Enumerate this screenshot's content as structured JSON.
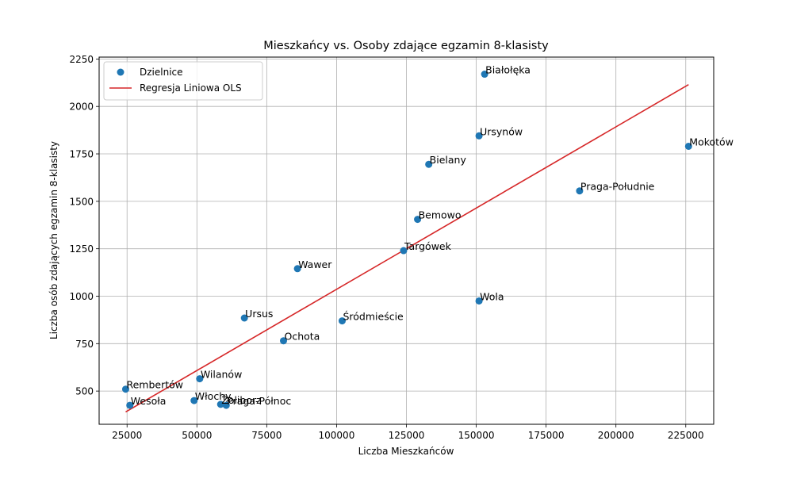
{
  "chart_data": {
    "type": "scatter",
    "title": "Mieszkańcy vs. Osoby zdające egzamin 8-klasisty",
    "xlabel": "Liczba Mieszkańców",
    "ylabel": "Liczba osób zdających egzamin 8-klasisty",
    "xlim": [
      15000,
      235000
    ],
    "ylim": [
      325,
      2260
    ],
    "xticks": [
      25000,
      50000,
      75000,
      100000,
      125000,
      150000,
      175000,
      200000,
      225000
    ],
    "xtick_labels": [
      "25000",
      "50000",
      "75000",
      "100000",
      "125000",
      "150000",
      "175000",
      "200000",
      "225000"
    ],
    "yticks": [
      500,
      750,
      1000,
      1250,
      1500,
      1750,
      2000,
      2250
    ],
    "ytick_labels": [
      "500",
      "750",
      "1000",
      "1250",
      "1500",
      "1750",
      "2000",
      "2250"
    ],
    "grid": true,
    "legend_position": "top-left",
    "series": [
      {
        "name": "Dzielnice",
        "kind": "scatter",
        "color": "#1f77b4",
        "points": [
          {
            "label": "Białołęka",
            "x": 153000,
            "y": 2170
          },
          {
            "label": "Ursynów",
            "x": 151000,
            "y": 1845
          },
          {
            "label": "Mokotów",
            "x": 226000,
            "y": 1790
          },
          {
            "label": "Bielany",
            "x": 133000,
            "y": 1695
          },
          {
            "label": "Praga-Południe",
            "x": 187000,
            "y": 1555
          },
          {
            "label": "Bemowo",
            "x": 129000,
            "y": 1405
          },
          {
            "label": "Targówek",
            "x": 124000,
            "y": 1240
          },
          {
            "label": "Wawer",
            "x": 86000,
            "y": 1145
          },
          {
            "label": "Wola",
            "x": 151000,
            "y": 975
          },
          {
            "label": "Ursus",
            "x": 67000,
            "y": 885
          },
          {
            "label": "Śródmieście",
            "x": 102000,
            "y": 870
          },
          {
            "label": "Ochota",
            "x": 81000,
            "y": 765
          },
          {
            "label": "Wilanów",
            "x": 51000,
            "y": 565
          },
          {
            "label": "Rembertów",
            "x": 24500,
            "y": 510
          },
          {
            "label": "Włochy",
            "x": 49000,
            "y": 450
          },
          {
            "label": "Żoliborz",
            "x": 58500,
            "y": 430
          },
          {
            "label": "Praga-Północ",
            "x": 60500,
            "y": 425
          },
          {
            "label": "Wesoła",
            "x": 26000,
            "y": 425
          }
        ]
      },
      {
        "name": "Regresja Liniowa OLS",
        "kind": "line",
        "color": "#d62728",
        "x": [
          24500,
          226000
        ],
        "y": [
          390,
          2115
        ]
      }
    ]
  }
}
